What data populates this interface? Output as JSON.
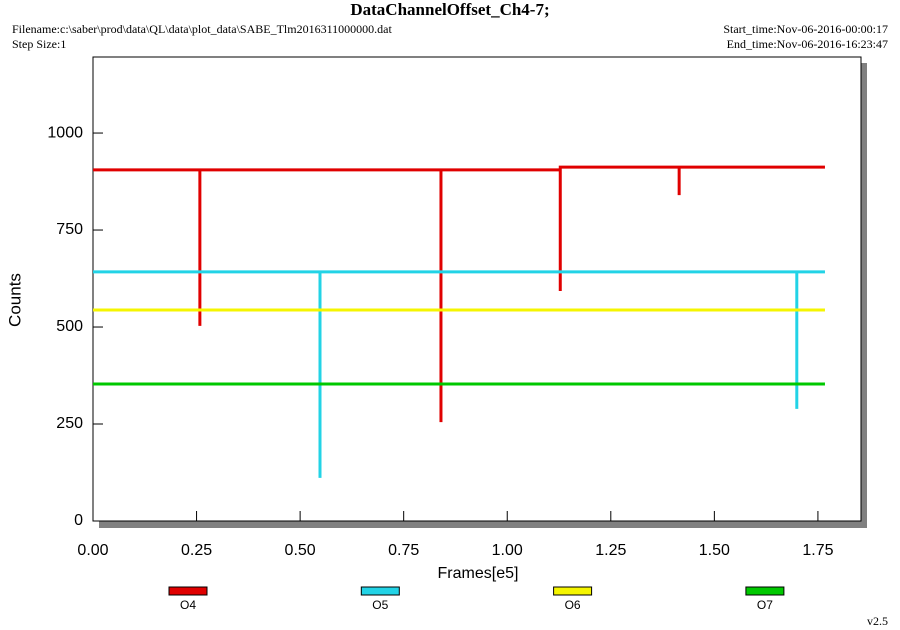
{
  "chart_data": {
    "type": "line",
    "title": "DataChannelOffset_Ch4-7;",
    "filename": "Filename:c:\\saber\\prod\\data\\QL\\data\\plot_data\\SABE_Tlm2016311000000.dat",
    "step_size": "Step Size:1",
    "start_time": "Start_time:Nov-06-2016-00:00:17",
    "end_time": "End_time:Nov-06-2016-16:23:47",
    "version": "v2.5",
    "xlabel": "Frames[e5]",
    "ylabel": "Counts",
    "xlim": [
      0,
      1.854
    ],
    "ylim": [
      0,
      1196
    ],
    "xticks": [
      {
        "value": 0,
        "label": "0.00"
      },
      0.25,
      {
        "value": 0.5,
        "label": "0.50"
      },
      0.75,
      {
        "value": 1,
        "label": "1.00"
      },
      1.25,
      {
        "value": 1.5,
        "label": "1.50"
      },
      1.75
    ],
    "yticks": [
      0,
      250,
      500,
      750,
      1000
    ],
    "series": [
      {
        "name": "O4",
        "color": "#e00000",
        "x": [
          0,
          0.258,
          0.258,
          0.258,
          0.84,
          0.84,
          0.84,
          1.128,
          1.128,
          1.128,
          1.415,
          1.415,
          1.415,
          1.767
        ],
        "values": [
          905,
          905,
          503,
          905,
          905,
          255,
          905,
          905,
          593,
          912,
          912,
          840,
          912,
          912
        ]
      },
      {
        "name": "O5",
        "color": "#22d3e6",
        "x": [
          0,
          0.548,
          0.548,
          0.548,
          1.699,
          1.699,
          1.699,
          1.767
        ],
        "values": [
          642,
          642,
          111,
          642,
          642,
          289,
          642,
          642
        ]
      },
      {
        "name": "O6",
        "color": "#f5f500",
        "x": [
          0,
          1.767
        ],
        "values": [
          544,
          544
        ]
      },
      {
        "name": "O7",
        "color": "#00c800",
        "x": [
          0,
          1.767
        ],
        "values": [
          353,
          353
        ]
      }
    ]
  }
}
